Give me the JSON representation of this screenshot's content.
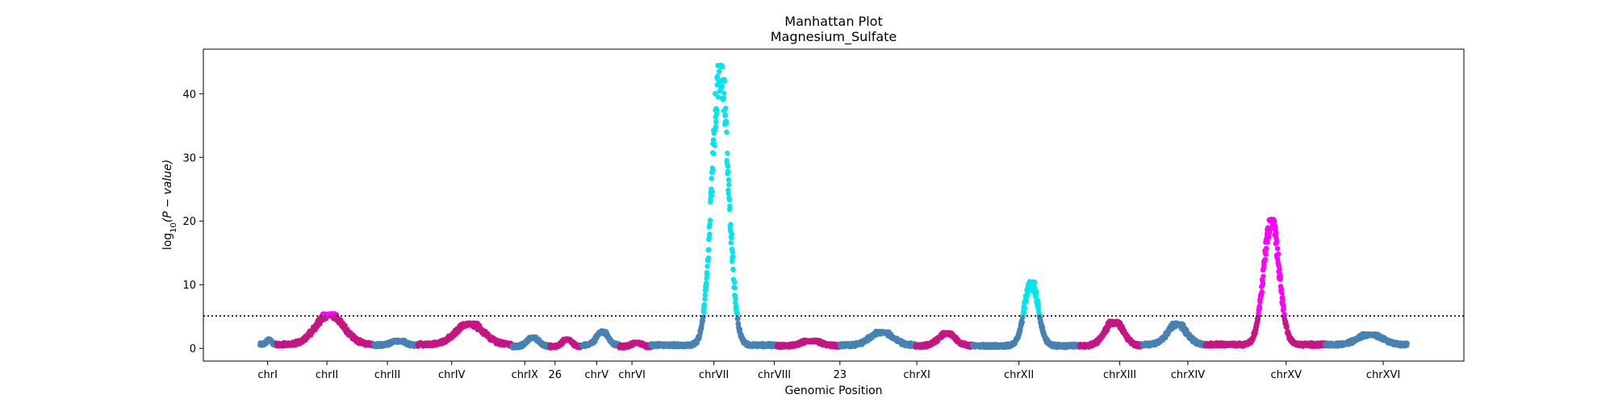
{
  "chart_data": {
    "type": "scatter",
    "title": "Manhattan Plot",
    "subtitle": "Magnesium_Sulfate",
    "xlabel": "Genomic Position",
    "ylabel_main": "log",
    "ylabel_sub": "10",
    "ylabel_rest": "(P − value)",
    "ylim": [
      -2,
      47
    ],
    "xlim": [
      0,
      100
    ],
    "yticks": [
      0,
      10,
      20,
      30,
      40
    ],
    "threshold": 5.1,
    "grid": false,
    "colors": {
      "odd": "#4682b4",
      "even": "#c71585",
      "sig_odd": "#00e5ee",
      "sig_even": "#ff00ff",
      "threshold": "#000000"
    },
    "chromosomes": [
      {
        "label": "chrI",
        "start": 4.5,
        "end": 5.8,
        "tick": 5.1,
        "base": 0.6,
        "peak": 1.5
      },
      {
        "label": "chrII",
        "start": 5.8,
        "end": 13.5,
        "tick": 9.8,
        "base": 0.6,
        "peak": 5.5
      },
      {
        "label": "chrIII",
        "start": 13.5,
        "end": 17.0,
        "tick": 14.6,
        "base": 0.5,
        "peak": 1.3
      },
      {
        "label": "chrIV",
        "start": 17.0,
        "end": 24.5,
        "tick": 19.7,
        "base": 0.6,
        "peak": 4.0
      },
      {
        "label": "chrIX",
        "start": 24.5,
        "end": 27.5,
        "tick": 25.5,
        "base": 0.3,
        "peak": 1.8
      },
      {
        "label": "26",
        "start": 27.5,
        "end": 30.0,
        "tick": 27.9,
        "base": 0.3,
        "peak": 1.5
      },
      {
        "label": "chrV",
        "start": 30.0,
        "end": 33.0,
        "tick": 31.2,
        "base": 0.5,
        "peak": 2.8
      },
      {
        "label": "chrVI",
        "start": 33.0,
        "end": 35.5,
        "tick": 34.0,
        "base": 0.3,
        "peak": 1.0
      },
      {
        "label": "chrVII",
        "start": 35.5,
        "end": 45.5,
        "tick": 40.5,
        "base": 0.5,
        "peak": 44.5
      },
      {
        "label": "chrVIII",
        "start": 45.5,
        "end": 50.5,
        "tick": 45.3,
        "base": 0.4,
        "peak": 1.3
      },
      {
        "label": "23",
        "start": 50.5,
        "end": 56.5,
        "tick": 50.5,
        "base": 0.5,
        "peak": 2.7
      },
      {
        "label": "chrXI",
        "start": 56.5,
        "end": 61.0,
        "tick": 56.6,
        "base": 0.4,
        "peak": 2.5
      },
      {
        "label": "chrXII",
        "start": 61.0,
        "end": 69.5,
        "tick": 64.7,
        "base": 0.4,
        "peak": 10.5
      },
      {
        "label": "chrXIII",
        "start": 69.5,
        "end": 74.5,
        "tick": 72.7,
        "base": 0.4,
        "peak": 4.3
      },
      {
        "label": "chrXIV",
        "start": 74.5,
        "end": 79.5,
        "tick": 78.1,
        "base": 0.6,
        "peak": 4.0
      },
      {
        "label": "chrXV",
        "start": 79.5,
        "end": 89.0,
        "tick": 85.9,
        "base": 0.6,
        "peak": 20.3
      },
      {
        "label": "chrXVI",
        "start": 89.0,
        "end": 95.5,
        "tick": 93.6,
        "base": 0.6,
        "peak": 2.3
      }
    ]
  }
}
